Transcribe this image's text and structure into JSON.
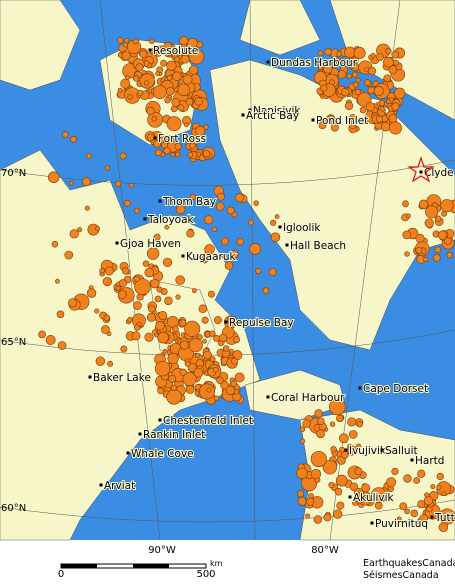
{
  "map": {
    "places": [
      "Resolute",
      "Dundas Harbour",
      "Nanisivik",
      "Arctic Bay",
      "Pond Inlet",
      "Fort Ross",
      "Clyde",
      "Thom Bay",
      "Taloyoak",
      "Igloolik",
      "Gjoa Haven",
      "Hall Beach",
      "Kugaaruk",
      "Repulse Bay",
      "Baker Lake",
      "Cape Dorset",
      "Coral Harbour",
      "Chesterfield Inlet",
      "Rankin Inlet",
      "Ivujivik",
      "Salluit",
      "Hartd",
      "Whale Cove",
      "Arviat",
      "Akulivik",
      "Puvirnituq",
      "Tutt"
    ],
    "latitude_labels": [
      "70°N",
      "65°N",
      "60°N"
    ],
    "longitude_labels": [
      "90°W",
      "80°W"
    ],
    "scale": {
      "start": "0",
      "end": "500",
      "unit": "km"
    },
    "credits": [
      "EarthquakesCanada",
      "SéismesCanada"
    ]
  }
}
